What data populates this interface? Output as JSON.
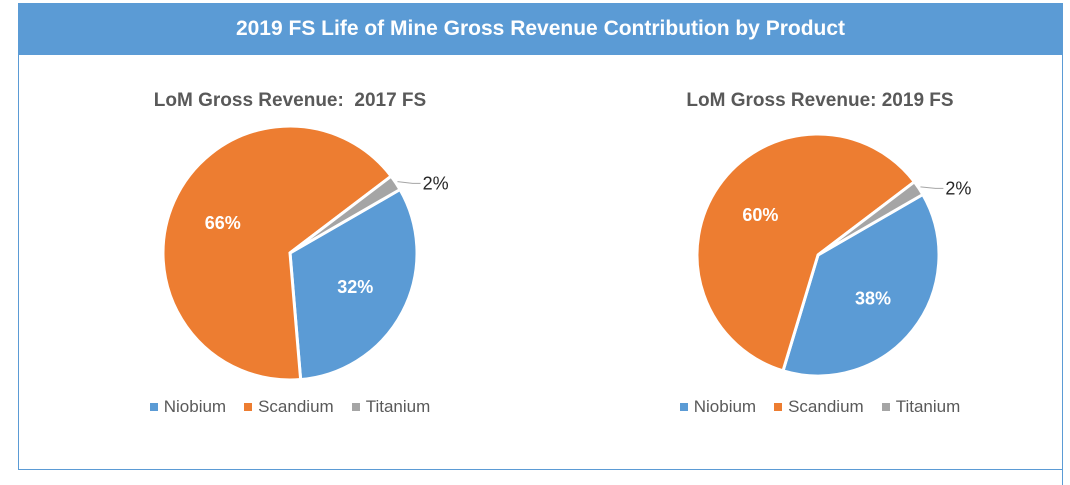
{
  "banner_title": "2019 FS Life of Mine Gross Revenue Contribution by Product",
  "colors": {
    "Niobium": "#5b9bd5",
    "Scandium": "#ed7d31",
    "Titanium": "#a5a5a5",
    "banner": "#5b9bd5"
  },
  "chart_data": [
    {
      "type": "pie",
      "title": "LoM Gross Revenue:  2017 FS",
      "categories": [
        "Niobium",
        "Scandium",
        "Titanium"
      ],
      "values": [
        32,
        66,
        2
      ],
      "data_labels": [
        "32%",
        "66%",
        "2%"
      ],
      "legend": "bottom"
    },
    {
      "type": "pie",
      "title": "LoM Gross Revenue: 2019 FS",
      "categories": [
        "Niobium",
        "Scandium",
        "Titanium"
      ],
      "values": [
        38,
        60,
        2
      ],
      "data_labels": [
        "38%",
        "60%",
        "2%"
      ],
      "legend": "bottom"
    }
  ]
}
